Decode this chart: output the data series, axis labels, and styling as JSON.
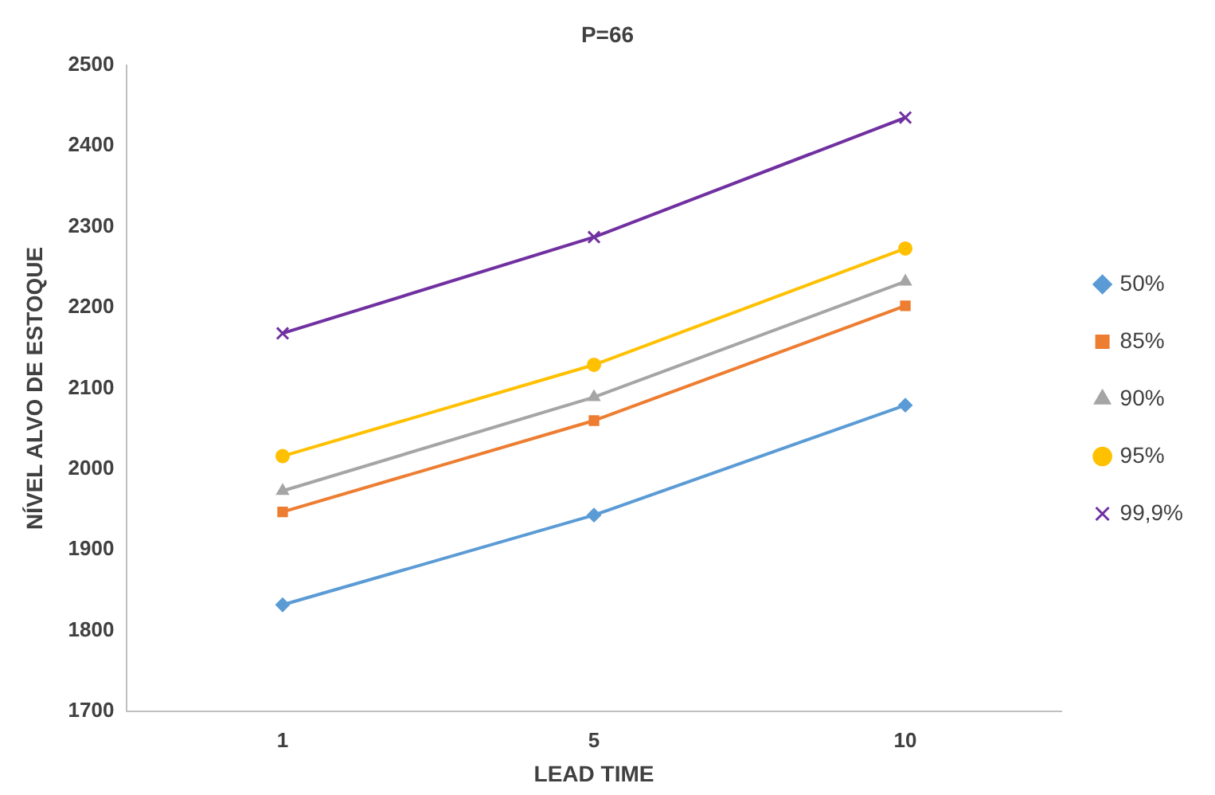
{
  "chart_data": {
    "type": "line",
    "title": "P=66",
    "xlabel": "LEAD TIME",
    "ylabel": "NÍVEL ALVO DE ESTOQUE",
    "categories": [
      "1",
      "5",
      "10"
    ],
    "series": [
      {
        "name": "50%",
        "color": "#5b9bd5",
        "marker": "diamond",
        "values": [
          1832,
          1943,
          2079
        ]
      },
      {
        "name": "85%",
        "color": "#ed7d31",
        "marker": "square",
        "values": [
          1947,
          2060,
          2202
        ]
      },
      {
        "name": "90%",
        "color": "#a5a5a5",
        "marker": "triangle",
        "values": [
          1973,
          2089,
          2232
        ]
      },
      {
        "name": "95%",
        "color": "#ffc000",
        "marker": "circle",
        "values": [
          2016,
          2129,
          2273
        ]
      },
      {
        "name": "99,9%",
        "color": "#7030a0",
        "marker": "cross",
        "values": [
          2168,
          2287,
          2435
        ]
      }
    ],
    "ylim": [
      1700,
      2500
    ],
    "yticks": [
      1700,
      1800,
      1900,
      2000,
      2100,
      2200,
      2300,
      2400,
      2500
    ],
    "grid": false,
    "legend": "right",
    "line_style": "solid"
  }
}
